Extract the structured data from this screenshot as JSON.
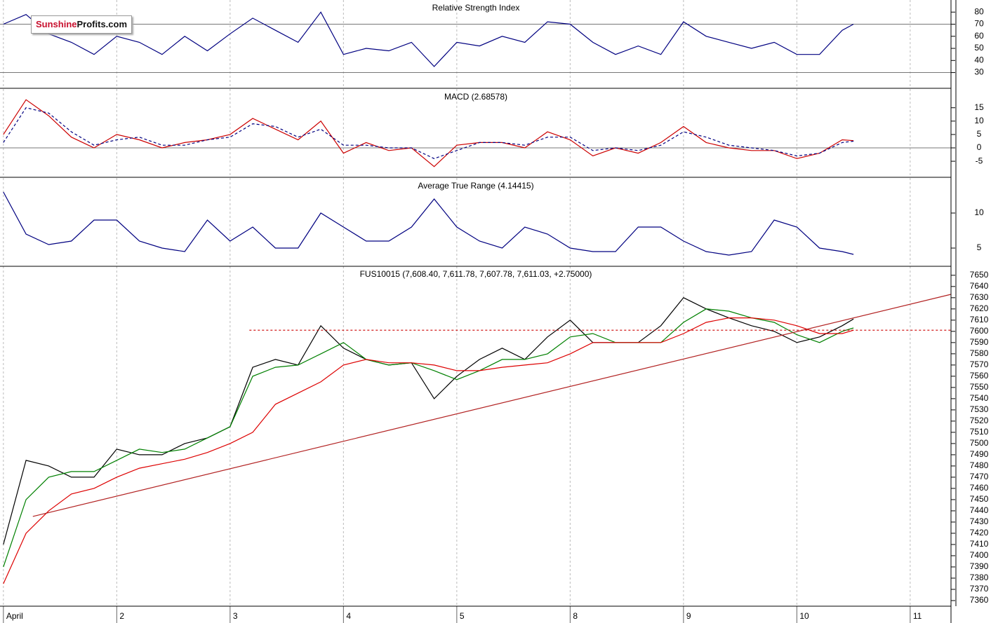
{
  "logo": {
    "part1": "Sunshine",
    "part2": "Profits.com"
  },
  "chart_data": [
    {
      "type": "line",
      "title": "Relative Strength Index",
      "x": [
        0,
        0.2,
        0.4,
        0.6,
        0.8,
        1,
        1.2,
        1.4,
        1.6,
        1.8,
        2,
        2.2,
        2.4,
        2.6,
        2.8,
        3,
        3.2,
        3.4,
        3.6,
        3.8,
        4,
        4.2,
        4.4,
        4.6,
        4.8,
        5,
        5.2,
        5.4,
        5.6,
        5.8,
        6,
        6.2,
        6.4,
        6.6,
        6.8,
        7,
        7.2,
        7.4,
        7.5
      ],
      "series": [
        {
          "color": "#000080",
          "values": [
            70,
            78,
            62,
            55,
            45,
            60,
            55,
            45,
            60,
            48,
            62,
            75,
            65,
            55,
            80,
            45,
            50,
            48,
            55,
            35,
            55,
            52,
            60,
            55,
            72,
            70,
            55,
            45,
            52,
            45,
            72,
            60,
            55,
            50,
            55,
            45,
            45,
            65,
            70
          ]
        }
      ],
      "reference_lines": [
        70,
        30
      ],
      "ylim": [
        17,
        90
      ],
      "yticks": [
        30,
        40,
        50,
        60,
        70,
        80
      ]
    },
    {
      "type": "line",
      "title": "MACD (2.68578)",
      "x": [
        0,
        0.2,
        0.4,
        0.6,
        0.8,
        1,
        1.2,
        1.4,
        1.6,
        1.8,
        2,
        2.2,
        2.4,
        2.6,
        2.8,
        3,
        3.2,
        3.4,
        3.6,
        3.8,
        4,
        4.2,
        4.4,
        4.6,
        4.8,
        5,
        5.2,
        5.4,
        5.6,
        5.8,
        6,
        6.2,
        6.4,
        6.6,
        6.8,
        7,
        7.2,
        7.4,
        7.5
      ],
      "series": [
        {
          "color": "#cc0000",
          "style": "solid",
          "values": [
            5,
            18,
            12,
            4,
            0,
            5,
            3,
            0,
            2,
            3,
            5,
            11,
            7,
            3,
            10,
            -2,
            2,
            -1,
            0,
            -7,
            1,
            2,
            2,
            0,
            6,
            3,
            -3,
            0,
            -2,
            2,
            8,
            2,
            0,
            -1,
            -1,
            -4,
            -2,
            3,
            2.7
          ]
        },
        {
          "color": "#000080",
          "style": "dashed",
          "values": [
            2,
            15,
            13,
            6,
            1,
            3,
            4,
            1,
            1,
            3,
            4,
            9,
            8,
            4,
            7,
            1,
            1,
            0,
            0,
            -4,
            -1,
            2,
            2,
            1,
            4,
            4,
            -1,
            0,
            -1,
            1,
            6,
            4,
            1,
            0,
            -1,
            -3,
            -2,
            2,
            2.5
          ]
        }
      ],
      "reference_lines": [
        0
      ],
      "ylim": [
        -11,
        22
      ],
      "yticks": [
        -5,
        0,
        5,
        10,
        15
      ]
    },
    {
      "type": "line",
      "title": "Average True Range (4.14415)",
      "x": [
        0,
        0.2,
        0.4,
        0.6,
        0.8,
        1,
        1.2,
        1.4,
        1.6,
        1.8,
        2,
        2.2,
        2.4,
        2.6,
        2.8,
        3,
        3.2,
        3.4,
        3.6,
        3.8,
        4,
        4.2,
        4.4,
        4.6,
        4.8,
        5,
        5.2,
        5.4,
        5.6,
        5.8,
        6,
        6.2,
        6.4,
        6.6,
        6.8,
        7,
        7.2,
        7.4,
        7.5
      ],
      "series": [
        {
          "color": "#000080",
          "values": [
            13,
            7,
            5.5,
            6,
            9,
            9,
            6,
            5,
            4.5,
            9,
            6,
            8,
            5,
            5,
            10,
            8,
            6,
            6,
            8,
            12,
            8,
            6,
            5,
            8,
            7,
            5,
            4.5,
            4.5,
            8,
            8,
            6,
            4.5,
            4,
            4.5,
            9,
            8,
            5,
            4.5,
            4.1
          ]
        }
      ],
      "ylim": [
        2.4,
        15
      ],
      "yticks": [
        5,
        10
      ]
    },
    {
      "type": "line",
      "title": "FUS10015 (7,608.40, 7,611.78, 7,607.78, 7,611.03, +2.75000)",
      "x": [
        0,
        0.2,
        0.4,
        0.6,
        0.8,
        1,
        1.2,
        1.4,
        1.6,
        1.8,
        2,
        2.2,
        2.4,
        2.6,
        2.8,
        3,
        3.2,
        3.4,
        3.6,
        3.8,
        4,
        4.2,
        4.4,
        4.6,
        4.8,
        5,
        5.2,
        5.4,
        5.6,
        5.8,
        6,
        6.2,
        6.4,
        6.6,
        6.8,
        7,
        7.2,
        7.4,
        7.5
      ],
      "series": [
        {
          "color": "#000000",
          "style": "solid",
          "values": [
            7410,
            7485,
            7480,
            7470,
            7470,
            7495,
            7490,
            7490,
            7500,
            7505,
            7515,
            7568,
            7575,
            7570,
            7605,
            7585,
            7575,
            7570,
            7572,
            7540,
            7560,
            7575,
            7585,
            7575,
            7595,
            7610,
            7590,
            7590,
            7590,
            7605,
            7630,
            7620,
            7612,
            7605,
            7600,
            7590,
            7595,
            7605,
            7611
          ]
        },
        {
          "color": "#008000",
          "style": "solid",
          "values": [
            7390,
            7450,
            7470,
            7475,
            7475,
            7485,
            7495,
            7492,
            7495,
            7505,
            7515,
            7560,
            7568,
            7570,
            7580,
            7590,
            7575,
            7570,
            7572,
            7565,
            7557,
            7565,
            7575,
            7575,
            7580,
            7595,
            7598,
            7590,
            7590,
            7590,
            7608,
            7620,
            7618,
            7612,
            7608,
            7597,
            7590,
            7600,
            7603
          ]
        },
        {
          "color": "#dd0000",
          "style": "solid",
          "values": [
            7375,
            7420,
            7440,
            7455,
            7460,
            7470,
            7478,
            7482,
            7486,
            7492,
            7500,
            7510,
            7535,
            7545,
            7555,
            7570,
            7575,
            7572,
            7572,
            7570,
            7565,
            7565,
            7568,
            7570,
            7572,
            7580,
            7590,
            7590,
            7590,
            7590,
            7598,
            7608,
            7612,
            7612,
            7610,
            7605,
            7598,
            7598,
            7601
          ]
        },
        {
          "color": "#b22222",
          "style": "solid",
          "x": [
            0.26,
            8.36
          ],
          "values": [
            7435,
            7633
          ]
        },
        {
          "color": "#cc0000",
          "style": "dotted",
          "x": [
            2.17,
            8.36
          ],
          "values": [
            7601,
            7601
          ]
        }
      ],
      "xlim": [
        -0.03,
        8.36
      ],
      "xticks": [
        {
          "value": 0,
          "label": "April"
        },
        {
          "value": 1,
          "label": "2"
        },
        {
          "value": 2,
          "label": "3"
        },
        {
          "value": 3,
          "label": "4"
        },
        {
          "value": 4,
          "label": "5"
        },
        {
          "value": 5,
          "label": "8"
        },
        {
          "value": 6,
          "label": "9"
        },
        {
          "value": 7,
          "label": "10"
        },
        {
          "value": 8,
          "label": "11"
        }
      ],
      "ylim": [
        7355,
        7658
      ],
      "yticks": [
        7360,
        7370,
        7380,
        7390,
        7400,
        7410,
        7420,
        7430,
        7440,
        7450,
        7460,
        7470,
        7480,
        7490,
        7500,
        7510,
        7520,
        7530,
        7540,
        7550,
        7560,
        7570,
        7580,
        7590,
        7600,
        7610,
        7620,
        7630,
        7640,
        7650
      ]
    }
  ]
}
